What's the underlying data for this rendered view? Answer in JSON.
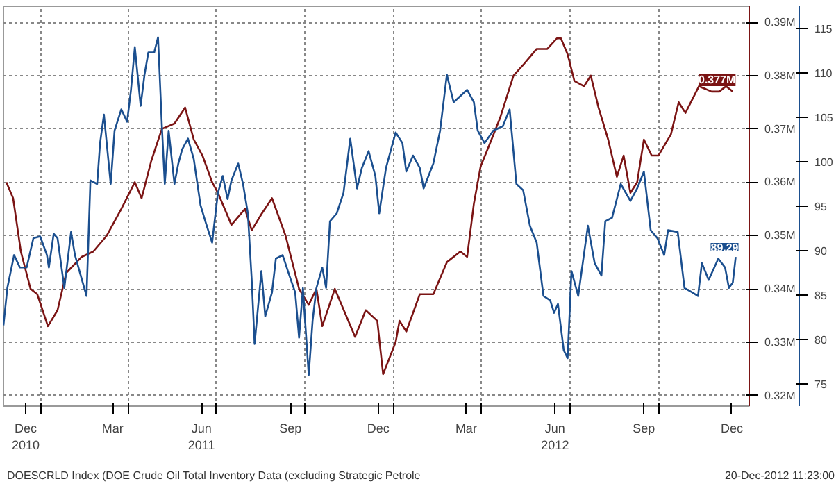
{
  "chart_data": {
    "type": "line",
    "xlim": [
      "2010-11-23",
      "2013-01-03"
    ],
    "xticks": [
      {
        "value": "2010-12-16",
        "label": "Dec\n2010"
      },
      {
        "value": "2011-01-01",
        "label": null
      },
      {
        "value": "2011-03-16",
        "label": "Mar"
      },
      {
        "value": "2011-04-01",
        "label": null
      },
      {
        "value": "2011-06-16",
        "label": "Jun\n2011"
      },
      {
        "value": "2011-07-01",
        "label": null
      },
      {
        "value": "2011-09-16",
        "label": "Sep"
      },
      {
        "value": "2011-10-01",
        "label": null
      },
      {
        "value": "2011-12-16",
        "label": "Dec"
      },
      {
        "value": "2012-01-01",
        "label": null
      },
      {
        "value": "2012-03-16",
        "label": "Mar"
      },
      {
        "value": "2012-04-01",
        "label": null
      },
      {
        "value": "2012-06-16",
        "label": "Jun\n2012"
      },
      {
        "value": "2012-07-01",
        "label": null
      },
      {
        "value": "2012-09-16",
        "label": "Sep"
      },
      {
        "value": "2012-10-01",
        "label": null
      },
      {
        "value": "2012-12-16",
        "label": "Dec"
      }
    ],
    "ylim": [
      0.318,
      0.393
    ],
    "yticks": [
      {
        "value": 0.32,
        "label": "0.32M"
      },
      {
        "value": 0.33,
        "label": "0.33M"
      },
      {
        "value": 0.34,
        "label": "0.34M"
      },
      {
        "value": 0.35,
        "label": "0.35M"
      },
      {
        "value": 0.36,
        "label": "0.36M"
      },
      {
        "value": 0.37,
        "label": "0.37M"
      },
      {
        "value": 0.38,
        "label": "0.38M"
      },
      {
        "value": 0.39,
        "label": "0.39M"
      }
    ],
    "y2lim": [
      72.5,
      117.5
    ],
    "y2ticks": [
      75,
      80,
      85,
      90,
      95,
      100,
      105,
      110,
      115
    ],
    "grid": true,
    "line_style": "solid",
    "annotations": [
      "DOESCRLD Index (DOE Crude Oil Total Inventory Data (excluding Strategic Petrole",
      "20-Dec-2012 11:23:00"
    ],
    "series": [
      {
        "color": "#7b1414",
        "x": [
          "2010-11-26",
          "2010-12-03",
          "2010-12-11",
          "2010-12-21",
          "2010-12-28",
          "2011-01-08",
          "2011-01-18",
          "2011-01-27",
          "2011-02-12",
          "2011-02-24",
          "2011-03-10",
          "2011-03-25",
          "2011-04-08",
          "2011-04-15",
          "2011-04-25",
          "2011-05-06",
          "2011-05-19",
          "2011-05-30",
          "2011-06-08",
          "2011-06-17",
          "2011-06-27",
          "2011-07-03",
          "2011-07-17",
          "2011-07-31",
          "2011-08-07",
          "2011-08-17",
          "2011-08-28",
          "2011-09-11",
          "2011-09-25",
          "2011-10-05",
          "2011-10-13",
          "2011-10-19",
          "2011-11-01",
          "2011-11-22",
          "2011-12-03",
          "2011-12-15",
          "2011-12-21",
          "2012-01-03",
          "2012-01-07",
          "2012-01-14",
          "2012-01-28",
          "2012-02-11",
          "2012-02-25",
          "2012-03-10",
          "2012-03-17",
          "2012-03-24",
          "2012-03-31",
          "2012-04-09",
          "2012-04-20",
          "2012-05-04",
          "2012-05-14",
          "2012-05-28",
          "2012-06-08",
          "2012-06-18",
          "2012-06-22",
          "2012-06-29",
          "2012-07-06",
          "2012-07-16",
          "2012-07-23",
          "2012-07-31",
          "2012-08-10",
          "2012-08-19",
          "2012-08-26",
          "2012-09-02",
          "2012-09-09",
          "2012-09-16",
          "2012-09-24",
          "2012-10-01",
          "2012-10-14",
          "2012-10-22",
          "2012-10-29",
          "2012-11-12",
          "2012-11-25",
          "2012-12-03",
          "2012-12-10",
          "2012-12-17"
        ],
        "values": [
          0.36,
          0.357,
          0.347,
          0.34,
          0.339,
          0.333,
          0.336,
          0.343,
          0.346,
          0.347,
          0.35,
          0.355,
          0.36,
          0.357,
          0.364,
          0.37,
          0.371,
          0.374,
          0.368,
          0.365,
          0.36,
          0.358,
          0.352,
          0.355,
          0.351,
          0.354,
          0.357,
          0.35,
          0.34,
          0.337,
          0.34,
          0.333,
          0.34,
          0.331,
          0.336,
          0.334,
          0.324,
          0.33,
          0.334,
          0.332,
          0.339,
          0.339,
          0.345,
          0.347,
          0.346,
          0.356,
          0.363,
          0.367,
          0.372,
          0.38,
          0.382,
          0.385,
          0.385,
          0.387,
          0.387,
          0.384,
          0.379,
          0.378,
          0.38,
          0.374,
          0.368,
          0.361,
          0.365,
          0.358,
          0.36,
          0.368,
          0.365,
          0.365,
          0.369,
          0.375,
          0.373,
          0.378,
          0.377,
          0.377,
          0.378,
          0.377
        ],
        "value_labels": [
          null,
          null,
          null,
          null,
          null,
          null,
          null,
          null,
          null,
          null,
          null,
          null,
          null,
          null,
          null,
          null,
          null,
          null,
          null,
          null,
          null,
          null,
          null,
          null,
          null,
          null,
          null,
          null,
          null,
          null,
          null,
          null,
          null,
          null,
          null,
          null,
          null,
          null,
          null,
          null,
          null,
          null,
          null,
          null,
          null,
          null,
          null,
          null,
          null,
          null,
          null,
          null,
          null,
          null,
          null,
          null,
          null,
          null,
          null,
          null,
          null,
          null,
          null,
          null,
          null,
          null,
          null,
          null,
          null,
          null,
          null,
          null,
          null,
          null,
          null,
          "0.377M"
        ]
      },
      {
        "color": "#1b4f8f",
        "axis": "y2",
        "x": [
          "2010-11-23",
          "2010-11-27",
          "2010-12-04",
          "2010-12-10",
          "2010-12-17",
          "2010-12-24",
          "2010-12-31",
          "2011-01-07",
          "2011-01-09",
          "2011-01-14",
          "2011-01-18",
          "2011-01-25",
          "2011-02-01",
          "2011-02-05",
          "2011-02-17",
          "2011-02-21",
          "2011-02-28",
          "2011-03-03",
          "2011-03-07",
          "2011-03-14",
          "2011-03-18",
          "2011-03-25",
          "2011-03-31",
          "2011-04-04",
          "2011-04-08",
          "2011-04-14",
          "2011-04-18",
          "2011-04-22",
          "2011-04-28",
          "2011-05-02",
          "2011-05-06",
          "2011-05-09",
          "2011-05-13",
          "2011-05-19",
          "2011-05-23",
          "2011-05-27",
          "2011-06-02",
          "2011-06-08",
          "2011-06-15",
          "2011-06-20",
          "2011-06-27",
          "2011-07-03",
          "2011-07-08",
          "2011-07-13",
          "2011-07-17",
          "2011-07-24",
          "2011-07-29",
          "2011-08-03",
          "2011-08-07",
          "2011-08-10",
          "2011-08-17",
          "2011-08-21",
          "2011-08-28",
          "2011-09-01",
          "2011-09-08",
          "2011-09-15",
          "2011-09-21",
          "2011-09-25",
          "2011-09-29",
          "2011-10-05",
          "2011-10-09",
          "2011-10-13",
          "2011-10-19",
          "2011-10-23",
          "2011-10-27",
          "2011-11-03",
          "2011-11-10",
          "2011-11-17",
          "2011-11-24",
          "2011-11-29",
          "2011-12-06",
          "2011-12-13",
          "2011-12-17",
          "2011-12-24",
          "2012-01-03",
          "2012-01-10",
          "2012-01-14",
          "2012-01-21",
          "2012-01-28",
          "2012-02-01",
          "2012-02-11",
          "2012-02-18",
          "2012-02-25",
          "2012-03-03",
          "2012-03-10",
          "2012-03-17",
          "2012-03-24",
          "2012-03-28",
          "2012-04-04",
          "2012-04-13",
          "2012-04-23",
          "2012-04-30",
          "2012-05-07",
          "2012-05-14",
          "2012-05-21",
          "2012-05-28",
          "2012-06-04",
          "2012-06-11",
          "2012-06-15",
          "2012-06-19",
          "2012-06-25",
          "2012-06-29",
          "2012-07-03",
          "2012-07-10",
          "2012-07-20",
          "2012-07-27",
          "2012-08-03",
          "2012-08-07",
          "2012-08-14",
          "2012-08-23",
          "2012-09-02",
          "2012-09-09",
          "2012-09-16",
          "2012-09-23",
          "2012-09-30",
          "2012-10-07",
          "2012-10-11",
          "2012-10-21",
          "2012-10-28",
          "2012-11-05",
          "2012-11-11",
          "2012-11-15",
          "2012-11-22",
          "2012-12-02",
          "2012-12-09",
          "2012-12-13",
          "2012-12-17",
          "2012-12-20"
        ],
        "values": [
          81.6,
          85.8,
          89.5,
          88.1,
          88.1,
          91.4,
          91.6,
          89.5,
          88.1,
          91.9,
          91.4,
          85.8,
          92.1,
          89.5,
          84.9,
          97.9,
          97.5,
          102.1,
          105.3,
          97.5,
          103.5,
          105.9,
          104.5,
          108.1,
          112.9,
          106.3,
          109.8,
          112.3,
          112.3,
          114.0,
          104.0,
          97.5,
          103.5,
          97.5,
          99.8,
          101.4,
          102.6,
          100.3,
          95.1,
          93.3,
          90.9,
          96.5,
          98.4,
          95.8,
          97.9,
          99.8,
          97.5,
          94.2,
          86.7,
          79.5,
          87.7,
          82.6,
          85.3,
          89.1,
          89.5,
          87.2,
          85.3,
          80.2,
          85.8,
          76.0,
          82.1,
          85.8,
          88.1,
          85.8,
          93.3,
          94.2,
          96.5,
          102.6,
          97.0,
          99.3,
          101.2,
          98.4,
          94.2,
          99.3,
          103.3,
          102.1,
          98.9,
          100.7,
          99.3,
          97.0,
          99.8,
          103.5,
          109.8,
          106.7,
          107.4,
          108.1,
          106.7,
          103.5,
          102.1,
          103.5,
          104.0,
          105.9,
          97.5,
          96.8,
          92.8,
          90.9,
          84.9,
          84.4,
          83.0,
          84.0,
          78.8,
          77.9,
          87.7,
          84.9,
          92.8,
          88.6,
          87.2,
          93.3,
          93.7,
          97.5,
          95.6,
          97.0,
          98.9,
          92.3,
          91.4,
          89.5,
          92.3,
          92.1,
          85.8,
          85.3,
          84.9,
          88.6,
          86.7,
          89.1,
          88.1,
          85.8,
          86.4,
          89.29
        ],
        "value_labels": [
          null,
          null,
          null,
          null,
          null,
          null,
          null,
          null,
          null,
          null,
          null,
          null,
          null,
          null,
          null,
          null,
          null,
          null,
          null,
          null,
          null,
          null,
          null,
          null,
          null,
          null,
          null,
          null,
          null,
          null,
          null,
          null,
          null,
          null,
          null,
          null,
          null,
          null,
          null,
          null,
          null,
          null,
          null,
          null,
          null,
          null,
          null,
          null,
          null,
          null,
          null,
          null,
          null,
          null,
          null,
          null,
          null,
          null,
          null,
          null,
          null,
          null,
          null,
          null,
          null,
          null,
          null,
          null,
          null,
          null,
          null,
          null,
          null,
          null,
          null,
          null,
          null,
          null,
          null,
          null,
          null,
          null,
          null,
          null,
          null,
          null,
          null,
          null,
          null,
          null,
          null,
          null,
          null,
          null,
          null,
          null,
          null,
          null,
          null,
          null,
          null,
          null,
          null,
          null,
          null,
          null,
          null,
          null,
          null,
          null,
          null,
          null,
          null,
          null,
          null,
          null,
          null,
          null,
          null,
          null,
          null,
          null,
          null,
          null,
          null,
          null,
          null,
          "89.29"
        ]
      }
    ]
  }
}
